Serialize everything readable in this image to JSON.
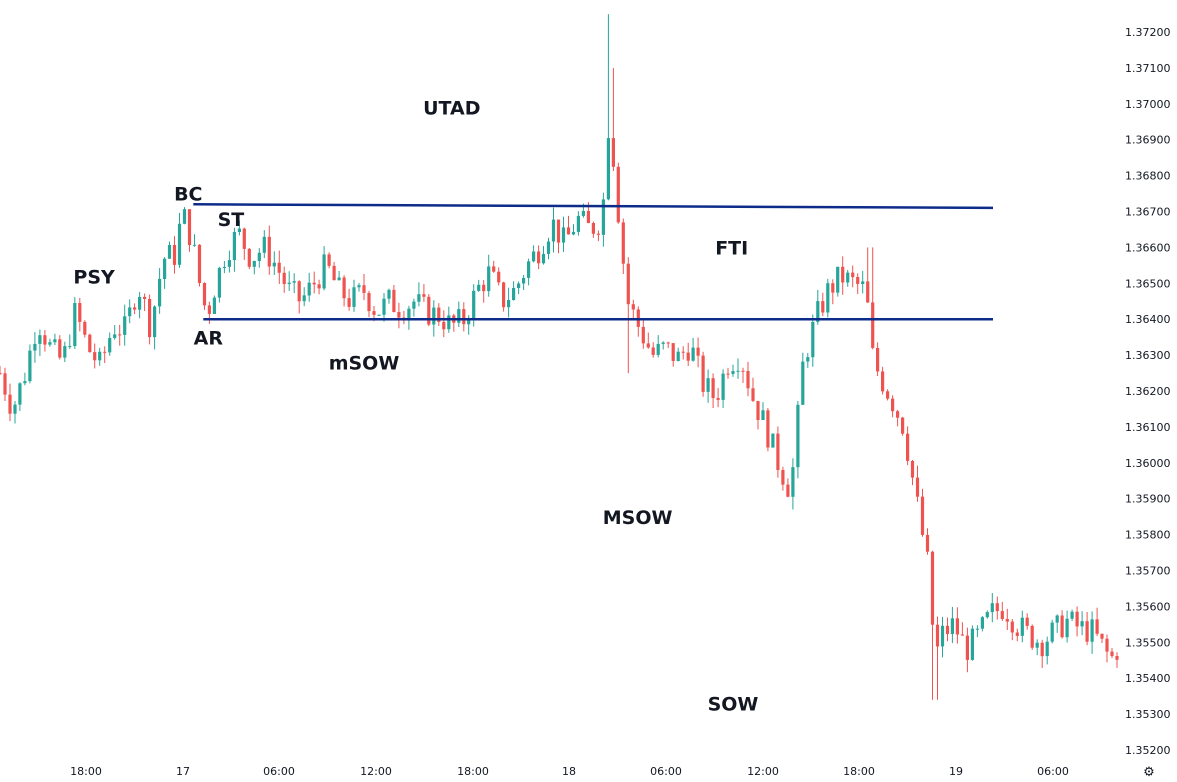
{
  "chart_data": {
    "type": "candlestick",
    "y_axis": {
      "position": "right",
      "ticks": [
        "1.35200",
        "1.35300",
        "1.35400",
        "1.35500",
        "1.35600",
        "1.35700",
        "1.35800",
        "1.35900",
        "1.36000",
        "1.36100",
        "1.36200",
        "1.36300",
        "1.36400",
        "1.36500",
        "1.36600",
        "1.36700",
        "1.36800",
        "1.36900",
        "1.37000",
        "1.37100",
        "1.37200"
      ],
      "range": [
        1.3517,
        1.3729
      ]
    },
    "x_axis": {
      "ticks": [
        "18:00",
        "17",
        "06:00",
        "12:00",
        "18:00",
        "18",
        "06:00",
        "12:00",
        "18:00",
        "19",
        "06:00"
      ]
    },
    "colors": {
      "up": "#26a69a",
      "down": "#ef5350",
      "levels": "#0d2c8a",
      "text": "#131722"
    },
    "levels": [
      {
        "price": 1.3672,
        "from_time": 15.4,
        "to_time": 62.9,
        "end_price": 1.3671
      },
      {
        "price": 1.364,
        "from_time": 16.2,
        "to_time": 62.9,
        "end_price": 1.364
      }
    ],
    "annotations": [
      {
        "text": "PSY",
        "time": 7.5,
        "price": 1.365
      },
      {
        "text": "BC",
        "time": 15.0,
        "price": 1.3673
      },
      {
        "text": "ST",
        "time": 18.4,
        "price": 1.3666
      },
      {
        "text": "AR",
        "time": 16.6,
        "price": 1.3633
      },
      {
        "text": "mSOW",
        "time": 29.0,
        "price": 1.3626
      },
      {
        "text": "UTAD",
        "time": 36.0,
        "price": 1.3697
      },
      {
        "text": "FTI",
        "time": 58.3,
        "price": 1.3658
      },
      {
        "text": "MSOW",
        "time": 50.8,
        "price": 1.3583
      },
      {
        "text": "SOW",
        "time": 58.4,
        "price": 1.3531
      }
    ],
    "path": [
      [
        0,
        1.3625
      ],
      [
        1,
        1.3615
      ],
      [
        2,
        1.3625
      ],
      [
        3,
        1.364
      ],
      [
        4,
        1.3632
      ],
      [
        5,
        1.3628
      ],
      [
        6,
        1.3642
      ],
      [
        7,
        1.3632
      ],
      [
        8,
        1.3627
      ],
      [
        9,
        1.3638
      ],
      [
        10,
        1.3637
      ],
      [
        11,
        1.365
      ],
      [
        12,
        1.3638
      ],
      [
        13,
        1.3657
      ],
      [
        14,
        1.3658
      ],
      [
        14.5,
        1.367
      ],
      [
        15.3,
        1.3662
      ],
      [
        16,
        1.3648
      ],
      [
        16.5,
        1.3641
      ],
      [
        17,
        1.3648
      ],
      [
        18,
        1.3659
      ],
      [
        19,
        1.3664
      ],
      [
        20,
        1.3657
      ],
      [
        21,
        1.366
      ],
      [
        22,
        1.3655
      ],
      [
        23,
        1.3648
      ],
      [
        24,
        1.3645
      ],
      [
        25,
        1.365
      ],
      [
        26,
        1.3655
      ],
      [
        27,
        1.3648
      ],
      [
        28,
        1.3645
      ],
      [
        29,
        1.3648
      ],
      [
        30,
        1.3642
      ],
      [
        31,
        1.3645
      ],
      [
        32,
        1.3643
      ],
      [
        33,
        1.3645
      ],
      [
        34,
        1.3642
      ],
      [
        35,
        1.3641
      ],
      [
        36,
        1.3638
      ],
      [
        37,
        1.364
      ],
      [
        38,
        1.3648
      ],
      [
        39,
        1.3653
      ],
      [
        40,
        1.3645
      ],
      [
        41,
        1.3648
      ],
      [
        42,
        1.3655
      ],
      [
        43,
        1.366
      ],
      [
        44,
        1.3667
      ],
      [
        45,
        1.3661
      ],
      [
        46,
        1.3668
      ],
      [
        47,
        1.3665
      ],
      [
        48,
        1.3668
      ],
      [
        48.4,
        1.3695
      ],
      [
        48.8,
        1.3688
      ],
      [
        49.4,
        1.3665
      ],
      [
        50,
        1.3645
      ],
      [
        51,
        1.3637
      ],
      [
        52,
        1.363
      ],
      [
        53,
        1.3632
      ],
      [
        54,
        1.3629
      ],
      [
        55,
        1.3633
      ],
      [
        56,
        1.3622
      ],
      [
        57,
        1.3618
      ],
      [
        58,
        1.3628
      ],
      [
        59,
        1.363
      ],
      [
        60,
        1.3618
      ],
      [
        61,
        1.361
      ],
      [
        62,
        1.36
      ],
      [
        63,
        1.3592
      ],
      [
        63.5,
        1.361
      ],
      [
        64,
        1.3628
      ],
      [
        65,
        1.364
      ],
      [
        66,
        1.3648
      ],
      [
        67,
        1.3652
      ],
      [
        68,
        1.365
      ],
      [
        69,
        1.3648
      ],
      [
        69.5,
        1.363
      ],
      [
        70,
        1.3625
      ],
      [
        71,
        1.3618
      ],
      [
        72,
        1.361
      ],
      [
        73,
        1.359
      ],
      [
        74,
        1.357
      ],
      [
        74.5,
        1.3545
      ],
      [
        75,
        1.3552
      ],
      [
        76,
        1.3555
      ],
      [
        77,
        1.3548
      ],
      [
        78,
        1.3552
      ],
      [
        79,
        1.3558
      ],
      [
        80,
        1.356
      ],
      [
        81,
        1.3555
      ],
      [
        82,
        1.3552
      ],
      [
        83,
        1.355
      ],
      [
        84,
        1.3553
      ],
      [
        85,
        1.3556
      ],
      [
        86,
        1.3554
      ],
      [
        87,
        1.3553
      ],
      [
        88,
        1.3548
      ],
      [
        88.5,
        1.3545
      ],
      [
        89,
        1.3548
      ]
    ],
    "chart_title": "",
    "xlabel": "",
    "ylabel": ""
  },
  "ui": {
    "settings_icon": "settings-gear-icon"
  }
}
